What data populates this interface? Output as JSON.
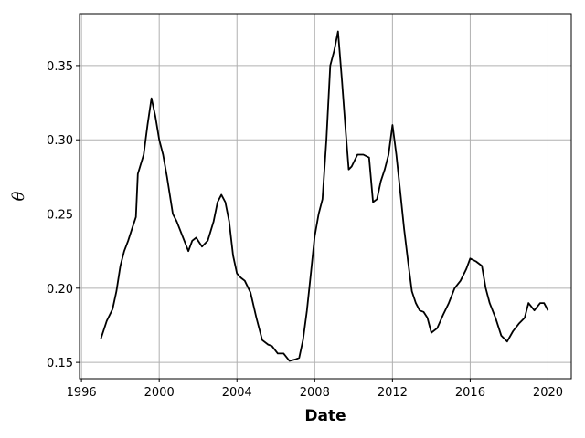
{
  "chart_data": {
    "type": "line",
    "title": "",
    "xlabel": "Date",
    "ylabel": "θ",
    "x_ticks": [
      1996,
      2000,
      2004,
      2008,
      2012,
      2016,
      2020
    ],
    "y_ticks": [
      0.15,
      0.2,
      0.25,
      0.3,
      0.35
    ],
    "x_tick_labels": [
      "1996",
      "2000",
      "2004",
      "2008",
      "2012",
      "2016",
      "2020"
    ],
    "y_tick_labels": [
      "0.15",
      "0.20",
      "0.25",
      "0.30",
      "0.35"
    ],
    "xlim": [
      1995.9,
      2021.2
    ],
    "ylim": [
      0.139,
      0.385
    ],
    "grid": true,
    "legend": false,
    "line_color": "#000000",
    "grid_color": "#b0b0b0",
    "series": [
      {
        "x": [
          1997.0,
          1997.3,
          1997.6,
          1997.8,
          1998.0,
          1998.2,
          1998.4,
          1998.6,
          1998.8,
          1998.9,
          1999.2,
          1999.4,
          1999.6,
          1999.8,
          2000.0,
          2000.2,
          2000.4,
          2000.7,
          2000.9,
          2001.2,
          2001.5,
          2001.7,
          2001.9,
          2002.2,
          2002.5,
          2002.8,
          2003.0,
          2003.2,
          2003.4,
          2003.6,
          2003.8,
          2004.0,
          2004.2,
          2004.4,
          2004.7,
          2005.0,
          2005.3,
          2005.6,
          2005.8,
          2006.1,
          2006.4,
          2006.7,
          2007.0,
          2007.2,
          2007.4,
          2007.6,
          2007.8,
          2008.0,
          2008.2,
          2008.4,
          2008.6,
          2008.8,
          2009.0,
          2009.2,
          2009.4,
          2009.6,
          2009.75,
          2009.9,
          2010.2,
          2010.5,
          2010.8,
          2011.0,
          2011.2,
          2011.4,
          2011.6,
          2011.8,
          2012.0,
          2012.2,
          2012.4,
          2012.6,
          2012.8,
          2013.0,
          2013.2,
          2013.4,
          2013.6,
          2013.8,
          2014.0,
          2014.3,
          2014.6,
          2014.9,
          2015.2,
          2015.5,
          2015.8,
          2016.0,
          2016.3,
          2016.6,
          2016.8,
          2017.0,
          2017.3,
          2017.6,
          2017.9,
          2018.2,
          2018.5,
          2018.8,
          2019.0,
          2019.3,
          2019.6,
          2019.8,
          2020.0
        ],
        "y": [
          0.166,
          0.178,
          0.186,
          0.198,
          0.215,
          0.225,
          0.232,
          0.24,
          0.248,
          0.277,
          0.29,
          0.31,
          0.328,
          0.316,
          0.3,
          0.29,
          0.275,
          0.25,
          0.245,
          0.235,
          0.225,
          0.232,
          0.234,
          0.228,
          0.232,
          0.245,
          0.258,
          0.263,
          0.258,
          0.245,
          0.222,
          0.21,
          0.207,
          0.205,
          0.197,
          0.18,
          0.165,
          0.162,
          0.161,
          0.156,
          0.156,
          0.151,
          0.152,
          0.153,
          0.165,
          0.185,
          0.21,
          0.235,
          0.25,
          0.26,
          0.3,
          0.35,
          0.36,
          0.373,
          0.34,
          0.305,
          0.28,
          0.282,
          0.29,
          0.29,
          0.288,
          0.258,
          0.26,
          0.272,
          0.28,
          0.29,
          0.31,
          0.29,
          0.265,
          0.24,
          0.218,
          0.198,
          0.19,
          0.185,
          0.184,
          0.18,
          0.17,
          0.173,
          0.182,
          0.19,
          0.2,
          0.205,
          0.213,
          0.22,
          0.218,
          0.215,
          0.2,
          0.19,
          0.18,
          0.168,
          0.164,
          0.171,
          0.176,
          0.18,
          0.19,
          0.185,
          0.19,
          0.19,
          0.185
        ]
      }
    ]
  }
}
